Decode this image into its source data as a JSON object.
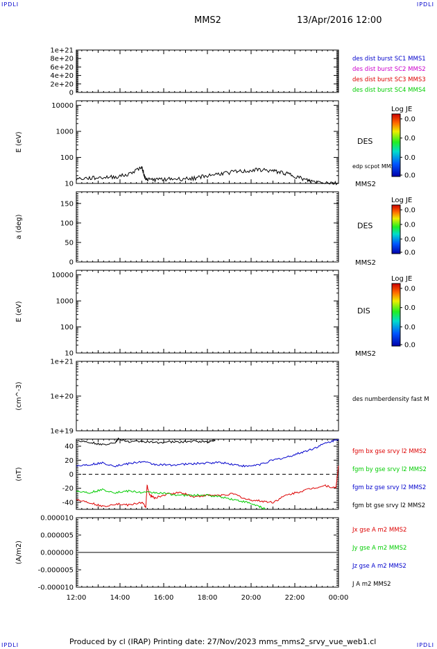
{
  "header": {
    "logo": "IPDLI",
    "spacecraft": "MMS2",
    "date": "13/Apr/2016 12:00"
  },
  "footer": {
    "produced": "Produced by cl (IRAP)   Printing date: 27/Nov/2023   mms_mms2_srvy_vue_web1.cl"
  },
  "colors": {
    "black": "#000000",
    "blue": "#0000cc",
    "magenta": "#cc00cc",
    "red": "#dd0000",
    "green": "#00cc00"
  },
  "chart_data": [
    {
      "id": "burst",
      "type": "line",
      "yticks": [
        "1e+21",
        "8e+20",
        "6e+20",
        "4e+20",
        "2e+20",
        "0"
      ],
      "ylim": [
        0,
        1e+21
      ],
      "dashed_zero": true,
      "legend": [
        {
          "label": "des dist burst SC1 MMS1",
          "color": "#0000cc"
        },
        {
          "label": "des dist burst SC2 MMS2",
          "color": "#cc00cc"
        },
        {
          "label": "des dist burst SC3 MMS3",
          "color": "#dd0000"
        },
        {
          "label": "des dist burst SC4 MMS4",
          "color": "#00cc00"
        }
      ]
    },
    {
      "id": "des-energy",
      "type": "line",
      "ylabel": "E (eV)",
      "scale": "log",
      "ylim": [
        10,
        15000
      ],
      "yticks": [
        "10000",
        "1000",
        "100",
        "10"
      ],
      "label": "DES",
      "sublabel": "MMS2",
      "colorbar": {
        "title": "Log JE",
        "values": [
          "0.0",
          "0.0",
          "0.0",
          "0.0"
        ]
      },
      "series": [
        {
          "name": "edp scpot MMS2",
          "color": "#000000",
          "x": [
            0,
            0.5,
            1,
            1.5,
            2,
            2.5,
            2.6,
            2.7,
            3,
            3.5,
            4,
            4.5,
            5,
            5.5,
            6,
            6.5,
            7,
            7.5,
            7.9,
            8.3,
            8.7,
            9,
            9.5,
            10
          ],
          "y": [
            15,
            16,
            17,
            18,
            22,
            42,
            18,
            14,
            14,
            15,
            15,
            16,
            20,
            24,
            28,
            30,
            34,
            30,
            26,
            20,
            14,
            12,
            11,
            10
          ]
        }
      ]
    },
    {
      "id": "des-pitch",
      "type": "heatmap",
      "ylabel": "a (deg)",
      "ylim": [
        0,
        180
      ],
      "yticks": [
        "150",
        "100",
        "50",
        "0"
      ],
      "label": "DES",
      "sublabel": "MMS2",
      "colorbar": {
        "title": "Log JE",
        "values": [
          "0.0",
          "0.0",
          "0.0",
          "0.0"
        ]
      }
    },
    {
      "id": "dis-energy",
      "type": "heatmap",
      "ylabel": "E (eV)",
      "scale": "log",
      "ylim": [
        10,
        15000
      ],
      "yticks": [
        "10000",
        "1000",
        "100",
        "10"
      ],
      "label": "DIS",
      "sublabel": "MMS2",
      "colorbar": {
        "title": "Log JE",
        "values": [
          "0.0",
          "0.0",
          "0.0",
          "0.0"
        ]
      }
    },
    {
      "id": "density",
      "type": "line",
      "ylabel": "(cm^-3)",
      "scale": "log",
      "ylim": [
        1e+19,
        1e+21
      ],
      "yticks": [
        "1e+21",
        "1e+20",
        "1e+19"
      ],
      "legend": [
        {
          "label": "des numberdensity fast M",
          "color": "#000000"
        }
      ]
    },
    {
      "id": "fgm",
      "type": "line",
      "ylabel": "(nT)",
      "ylim": [
        -50,
        50
      ],
      "yticks": [
        "40",
        "20",
        "0",
        "-20",
        "-40"
      ],
      "dashed_zero": true,
      "series": [
        {
          "name": "fgm bx gse srvy l2 MMS2",
          "color": "#dd0000",
          "x": [
            0,
            0.5,
            1,
            1.5,
            2,
            2.5,
            2.65,
            2.7,
            2.8,
            3,
            3.5,
            4,
            4.5,
            5,
            5.5,
            6,
            6.5,
            7,
            7.5,
            8,
            8.5,
            9,
            9.5,
            9.9,
            10
          ],
          "y": [
            -36,
            -40,
            -46,
            -42,
            -44,
            -40,
            -47,
            -16,
            -30,
            -34,
            -28,
            -26,
            -32,
            -30,
            -30,
            -28,
            -36,
            -38,
            -40,
            -30,
            -25,
            -20,
            -16,
            -20,
            12
          ]
        },
        {
          "name": "fgm by gse srvy l2 MMS2",
          "color": "#00cc00",
          "x": [
            0,
            0.5,
            1,
            1.5,
            2,
            2.5,
            3,
            3.5,
            4,
            4.5,
            5,
            5.5,
            6,
            6.5,
            7,
            7.2
          ],
          "y": [
            -24,
            -26,
            -22,
            -26,
            -24,
            -26,
            -26,
            -28,
            -30,
            -30,
            -30,
            -32,
            -36,
            -40,
            -46,
            -50
          ]
        },
        {
          "name": "fgm bz gse srvy l2 MMS2",
          "color": "#0000cc",
          "x": [
            0,
            0.5,
            1,
            1.5,
            2,
            2.5,
            3,
            3.5,
            4,
            4.5,
            5,
            5.5,
            6,
            6.5,
            7,
            7.5,
            8,
            8.5,
            9,
            9.5,
            10
          ],
          "y": [
            12,
            14,
            16,
            12,
            15,
            18,
            14,
            13,
            14,
            15,
            16,
            17,
            14,
            11,
            14,
            20,
            24,
            30,
            36,
            44,
            50
          ]
        },
        {
          "name": "fgm bt gse srvy l2 MMS2",
          "color": "#000000",
          "x": [
            0,
            0.5,
            1,
            1.5,
            1.6,
            2.05,
            2.5,
            3,
            3.5,
            4,
            4.5,
            5,
            5.3
          ],
          "y": [
            48,
            46,
            42,
            46,
            50,
            46,
            47,
            45,
            46,
            46,
            47,
            46,
            49
          ]
        }
      ]
    },
    {
      "id": "current",
      "type": "line",
      "ylabel": "(A/m2)",
      "ylim": [
        -1e-05,
        1e-05
      ],
      "yticks": [
        "0.000010",
        "0.000005",
        "0.000000",
        "-0.000005",
        "-0.000010"
      ],
      "xticks": [
        "12:00",
        "14:00",
        "16:00",
        "18:00",
        "20:00",
        "22:00",
        "00:00"
      ],
      "legend": [
        {
          "label": "Jx gse A m2 MMS2",
          "color": "#dd0000"
        },
        {
          "label": "Jy gse A m2 MMS2",
          "color": "#00cc00"
        },
        {
          "label": "Jz gse A m2 MMS2",
          "color": "#0000cc"
        },
        {
          "label": "J A m2 MMS2",
          "color": "#000000"
        }
      ],
      "series": [
        {
          "name": "J A m2 MMS2",
          "color": "#000000",
          "x": [
            0,
            10
          ],
          "y": [
            0,
            0
          ]
        }
      ]
    }
  ]
}
